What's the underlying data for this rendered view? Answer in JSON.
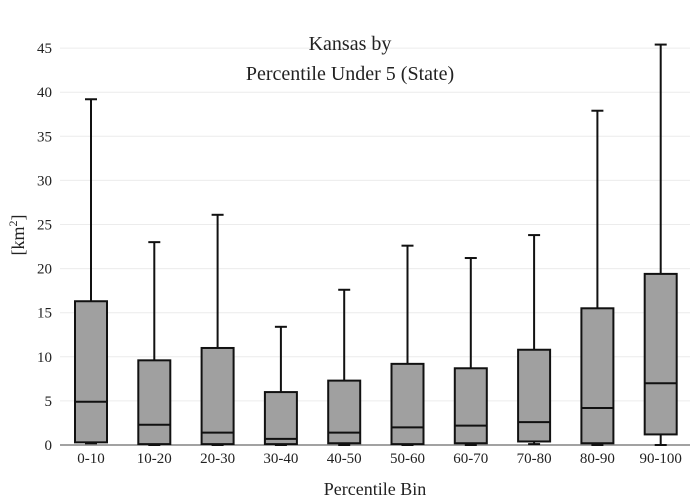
{
  "chart_data": {
    "type": "box",
    "title_line1": "Kansas  by",
    "title_line2": "Percentile Under 5 (State)",
    "xlabel": "Percentile Bin",
    "ylabel": "[km",
    "ylabel_sup": "2",
    "ylabel_close": "]",
    "ylim": [
      0,
      47
    ],
    "yticks": [
      0,
      5,
      10,
      15,
      20,
      25,
      30,
      35,
      40,
      45
    ],
    "grid": true,
    "categories": [
      "0-10",
      "10-20",
      "20-30",
      "30-40",
      "40-50",
      "50-60",
      "60-70",
      "70-80",
      "80-90",
      "90-100"
    ],
    "boxes": [
      {
        "min": 0.2,
        "q1": 0.3,
        "median": 4.9,
        "q3": 16.3,
        "max": 39.2
      },
      {
        "min": 0.0,
        "q1": 0.1,
        "median": 2.3,
        "q3": 9.6,
        "max": 23.0
      },
      {
        "min": 0.0,
        "q1": 0.1,
        "median": 1.4,
        "q3": 11.0,
        "max": 26.1
      },
      {
        "min": 0.0,
        "q1": 0.1,
        "median": 0.7,
        "q3": 6.0,
        "max": 13.4
      },
      {
        "min": 0.0,
        "q1": 0.2,
        "median": 1.4,
        "q3": 7.3,
        "max": 17.6
      },
      {
        "min": 0.0,
        "q1": 0.1,
        "median": 2.0,
        "q3": 9.2,
        "max": 22.6
      },
      {
        "min": 0.0,
        "q1": 0.2,
        "median": 2.2,
        "q3": 8.7,
        "max": 21.2
      },
      {
        "min": 0.1,
        "q1": 0.4,
        "median": 2.6,
        "q3": 10.8,
        "max": 23.8
      },
      {
        "min": 0.0,
        "q1": 0.2,
        "median": 4.2,
        "q3": 15.5,
        "max": 37.9
      },
      {
        "min": 0.0,
        "q1": 1.2,
        "median": 7.0,
        "q3": 19.4,
        "max": 45.4
      }
    ]
  }
}
